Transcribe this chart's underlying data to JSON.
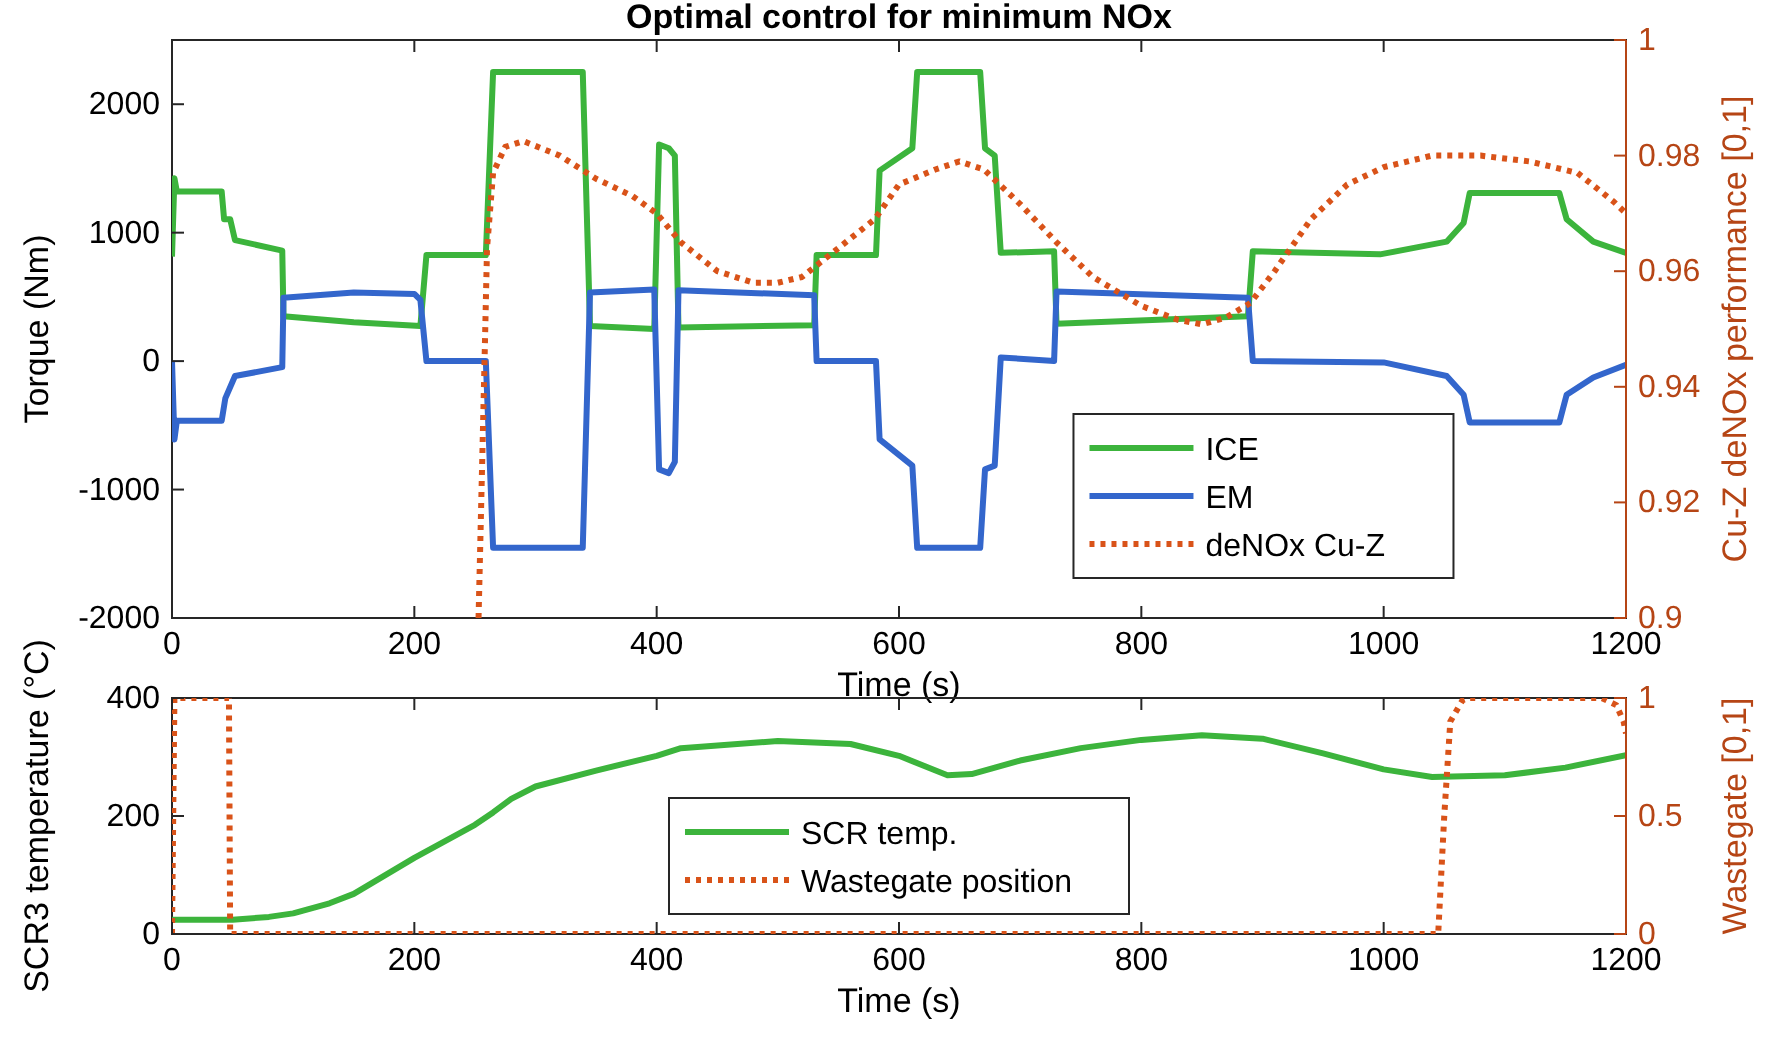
{
  "chart_data": [
    {
      "type": "line",
      "title": "Optimal control for minimum NOx",
      "xlabel": "Time (s)",
      "ylabel": "Torque (Nm)",
      "y2label": "Cu-Z deNOx performance [0,1]",
      "xlim": [
        0,
        1200
      ],
      "xticks": [
        0,
        200,
        400,
        600,
        800,
        1000,
        1200
      ],
      "ylim": [
        -2000,
        2500
      ],
      "yticks": [
        -2000,
        -1000,
        0,
        1000,
        2000
      ],
      "y2lim": [
        0.9,
        1
      ],
      "y2ticks": [
        0.9,
        0.92,
        0.94,
        0.96,
        0.98,
        1
      ],
      "legend": "bottom right",
      "grid": false,
      "series": [
        {
          "name": "ICE",
          "color": "#3cb43c",
          "line_style": "solid",
          "x": [
            0,
            2,
            4,
            41,
            43,
            48,
            52,
            91,
            92,
            150,
            205,
            210,
            259,
            265,
            339,
            345,
            398,
            402,
            410,
            415,
            418,
            530,
            532,
            581,
            584,
            611,
            615,
            667,
            671,
            679,
            684,
            728,
            730,
            888,
            892,
            997,
            1052,
            1066,
            1071,
            1145,
            1151,
            1173,
            1200
          ],
          "values": [
            814,
            1424,
            1320,
            1320,
            1105,
            1105,
            942,
            860,
            349,
            302,
            273,
            826,
            826,
            2250,
            2250,
            273,
            250,
            1686,
            1657,
            1600,
            262,
            279,
            826,
            826,
            1483,
            1657,
            2250,
            2250,
            1657,
            1599,
            843,
            855,
            291,
            349,
            855,
            831,
            930,
            1076,
            1308,
            1308,
            1105,
            930,
            843
          ]
        },
        {
          "name": "EM",
          "color": "#3366cc",
          "line_style": "solid",
          "x": [
            0,
            2,
            4,
            41,
            44,
            52,
            91,
            92,
            150,
            200,
            205,
            210,
            259,
            265,
            339,
            345,
            398,
            402,
            410,
            415,
            418,
            530,
            532,
            581,
            584,
            611,
            615,
            667,
            671,
            679,
            684,
            728,
            730,
            888,
            892,
            1000,
            1052,
            1066,
            1071,
            1145,
            1151,
            1173,
            1200
          ],
          "values": [
            0,
            -610,
            -465,
            -465,
            -290,
            -116,
            -47,
            494,
            535,
            523,
            477,
            0,
            0,
            -1453,
            -1453,
            535,
            558,
            -843,
            -872,
            -785,
            552,
            512,
            0,
            0,
            -610,
            -814,
            -1453,
            -1453,
            -843,
            -814,
            29,
            0,
            541,
            494,
            0,
            -10,
            -116,
            -262,
            -477,
            -477,
            -262,
            -128,
            -29
          ]
        },
        {
          "name": "deNOx Cu-Z",
          "color": "#d95319",
          "line_style": "dotted",
          "axis": "y2",
          "x": [
            253,
            258,
            260,
            265,
            275,
            290,
            320,
            350,
            380,
            400,
            420,
            450,
            480,
            500,
            520,
            550,
            580,
            600,
            630,
            650,
            670,
            700,
            730,
            760,
            800,
            830,
            850,
            870,
            890,
            910,
            940,
            970,
            1000,
            1040,
            1080,
            1120,
            1160,
            1190,
            1200
          ],
          "values": [
            0.9,
            0.945,
            0.964,
            0.977,
            0.9815,
            0.9825,
            0.98,
            0.976,
            0.973,
            0.97,
            0.965,
            0.96,
            0.958,
            0.958,
            0.959,
            0.964,
            0.969,
            0.975,
            0.9776,
            0.979,
            0.9776,
            0.9716,
            0.965,
            0.959,
            0.954,
            0.9516,
            0.9508,
            0.952,
            0.9545,
            0.96,
            0.969,
            0.975,
            0.978,
            0.98,
            0.98,
            0.979,
            0.977,
            0.972,
            0.97
          ]
        }
      ]
    },
    {
      "type": "line",
      "xlabel": "Time (s)",
      "ylabel": "SCR3 temperature (°C)",
      "y2label": "Wastegate [0,1]",
      "xlim": [
        0,
        1200
      ],
      "xticks": [
        0,
        200,
        400,
        600,
        800,
        1000,
        1200
      ],
      "ylim": [
        0,
        400
      ],
      "yticks": [
        0,
        200,
        400
      ],
      "y2lim": [
        0,
        1
      ],
      "y2ticks": [
        0,
        0.5,
        1
      ],
      "legend": "bottom",
      "grid": false,
      "series": [
        {
          "name": "SCR temp.",
          "color": "#3cb43c",
          "line_style": "solid",
          "x": [
            0,
            50,
            80,
            100,
            130,
            150,
            200,
            250,
            265,
            280,
            300,
            350,
            400,
            420,
            500,
            560,
            600,
            640,
            660,
            700,
            750,
            800,
            850,
            900,
            950,
            1000,
            1040,
            1100,
            1150,
            1200
          ],
          "values": [
            24,
            24,
            29,
            35,
            52,
            68,
            129,
            185,
            206,
            229,
            250,
            277,
            302,
            315,
            327,
            322,
            302,
            269,
            271,
            294,
            315,
            329,
            337,
            331,
            306,
            279,
            266,
            269,
            282,
            303
          ]
        },
        {
          "name": "Wastegate position",
          "color": "#d95319",
          "line_style": "dotted",
          "axis": "y2",
          "x": [
            0,
            2,
            47,
            48,
            1045,
            1050,
            1055,
            1065,
            1070,
            1180,
            1192,
            1198,
            1200
          ],
          "values": [
            0,
            1,
            1,
            0,
            0,
            0.5,
            0.9,
            0.99,
            1,
            1,
            0.97,
            0.9,
            0.85
          ]
        }
      ]
    }
  ]
}
